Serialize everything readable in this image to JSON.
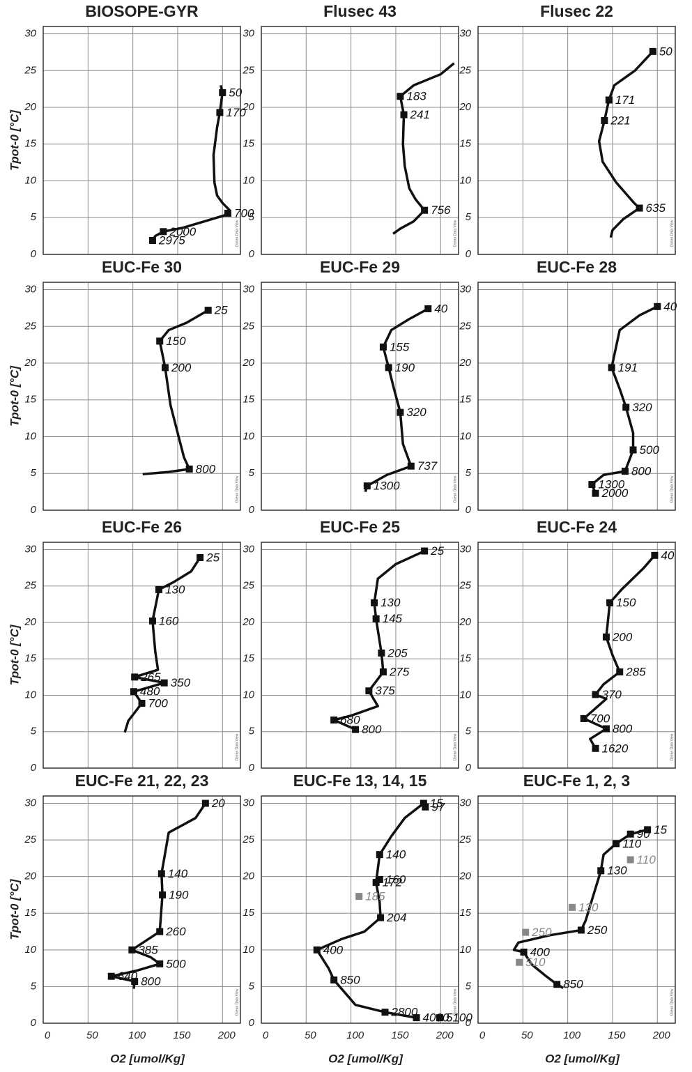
{
  "chart_data": [
    {
      "type": "line",
      "title": "BIOSOPE-GYR",
      "ylabel": "Tpot-0 [°C]",
      "watermark": "Ocean Data View",
      "color": "#111111",
      "x": [
        198,
        200,
        197,
        194,
        190,
        191,
        194,
        200,
        208,
        202,
        180,
        155,
        134,
        125,
        122
      ],
      "values": [
        23,
        22,
        19.3,
        17.3,
        13.5,
        9.8,
        8,
        7,
        6,
        5.3,
        4.5,
        3.6,
        3.1,
        2.5,
        1.9
      ],
      "markers": [
        {
          "x": 200,
          "y": 22,
          "label": 50
        },
        {
          "x": 197,
          "y": 19.3,
          "label": 170
        },
        {
          "x": 206,
          "y": 5.6,
          "label": 700
        },
        {
          "x": 134,
          "y": 3.1,
          "label": 2000
        },
        {
          "x": 122,
          "y": 1.9,
          "label": 2975
        }
      ],
      "xlim": [
        0,
        220
      ],
      "ylim": [
        0,
        31
      ],
      "xticks": [
        0,
        50,
        100,
        150,
        200
      ],
      "yticks": [
        0,
        5,
        10,
        15,
        20,
        25,
        30
      ],
      "grid": true,
      "show_xtick_labels": false
    },
    {
      "type": "line",
      "title": "Flusec 43",
      "watermark": "Ocean Data View",
      "color": "#111111",
      "x": [
        215,
        200,
        170,
        155,
        159,
        158,
        160,
        165,
        172,
        182,
        170,
        155,
        147
      ],
      "values": [
        26,
        24.5,
        23,
        21.5,
        19,
        15,
        12,
        9,
        7.5,
        6,
        4.5,
        3.5,
        2.8
      ],
      "markers": [
        {
          "x": 155,
          "y": 21.5,
          "label": 183
        },
        {
          "x": 159,
          "y": 19,
          "label": 241
        },
        {
          "x": 182,
          "y": 6,
          "label": 756
        }
      ],
      "xlim": [
        0,
        220
      ],
      "ylim": [
        0,
        31
      ],
      "xticks": [
        0,
        50,
        100,
        150,
        200
      ],
      "yticks": [
        0,
        5,
        10,
        15,
        20,
        25,
        30
      ],
      "grid": true,
      "show_xtick_labels": false
    },
    {
      "type": "line",
      "title": "Flusec 22",
      "watermark": "Ocean Data View",
      "color": "#111111",
      "x": [
        195,
        175,
        152,
        146,
        141,
        135,
        139,
        154,
        174,
        180,
        162,
        150,
        148
      ],
      "values": [
        27.6,
        25,
        23,
        21,
        18.2,
        15.4,
        12.6,
        9.8,
        7,
        6.3,
        4.8,
        3.3,
        2.3
      ],
      "markers": [
        {
          "x": 195,
          "y": 27.6,
          "label": 50
        },
        {
          "x": 146,
          "y": 21,
          "label": 171
        },
        {
          "x": 141,
          "y": 18.2,
          "label": 221
        },
        {
          "x": 180,
          "y": 6.3,
          "label": 635
        }
      ],
      "xlim": [
        0,
        220
      ],
      "ylim": [
        0,
        31
      ],
      "xticks": [
        0,
        50,
        100,
        150,
        200
      ],
      "yticks": [
        0,
        5,
        10,
        15,
        20,
        25,
        30
      ],
      "grid": true,
      "show_xtick_labels": false
    },
    {
      "type": "line",
      "title": "EUC-Fe 30",
      "ylabel": "Tpot-0 [°C]",
      "watermark": "Ocean Data View",
      "color": "#111111",
      "x": [
        184,
        160,
        140,
        130,
        136,
        142,
        150,
        157,
        163,
        140,
        111
      ],
      "values": [
        27.2,
        25.5,
        24.5,
        23,
        19.4,
        14.3,
        10.5,
        7.2,
        5.6,
        5.2,
        4.9
      ],
      "markers": [
        {
          "x": 184,
          "y": 27.2,
          "label": 25
        },
        {
          "x": 130,
          "y": 23,
          "label": 150
        },
        {
          "x": 136,
          "y": 19.4,
          "label": 200
        },
        {
          "x": 163,
          "y": 5.6,
          "label": 800
        }
      ],
      "xlim": [
        0,
        220
      ],
      "ylim": [
        0,
        31
      ],
      "xticks": [
        0,
        50,
        100,
        150,
        200
      ],
      "yticks": [
        0,
        5,
        10,
        15,
        20,
        25,
        30
      ],
      "grid": true,
      "show_xtick_labels": false
    },
    {
      "type": "line",
      "title": "EUC-Fe 29",
      "watermark": "Ocean Data View",
      "color": "#111111",
      "x": [
        186,
        165,
        145,
        136,
        142,
        148,
        155,
        158,
        167,
        140,
        118,
        116
      ],
      "values": [
        27.4,
        26,
        24.5,
        22.2,
        19.4,
        16.5,
        13.3,
        9,
        6,
        4.8,
        3.3,
        2.5
      ],
      "markers": [
        {
          "x": 186,
          "y": 27.4,
          "label": 40
        },
        {
          "x": 136,
          "y": 22.2,
          "label": 155
        },
        {
          "x": 142,
          "y": 19.4,
          "label": 190
        },
        {
          "x": 155,
          "y": 13.3,
          "label": 320
        },
        {
          "x": 167,
          "y": 6,
          "label": 737
        },
        {
          "x": 118,
          "y": 3.3,
          "label": 1300
        }
      ],
      "xlim": [
        0,
        220
      ],
      "ylim": [
        0,
        31
      ],
      "xticks": [
        0,
        50,
        100,
        150,
        200
      ],
      "yticks": [
        0,
        5,
        10,
        15,
        20,
        25,
        30
      ],
      "grid": true,
      "show_xtick_labels": false
    },
    {
      "type": "line",
      "title": "EUC-Fe 28",
      "watermark": "Ocean Data View",
      "color": "#111111",
      "x": [
        200,
        180,
        158,
        149,
        158,
        165,
        173,
        173,
        164,
        140,
        127,
        131
      ],
      "values": [
        27.7,
        26.5,
        24.5,
        19.4,
        16.5,
        14,
        10.5,
        8.2,
        5.3,
        4.8,
        3.5,
        2.3
      ],
      "markers": [
        {
          "x": 200,
          "y": 27.7,
          "label": 40
        },
        {
          "x": 149,
          "y": 19.4,
          "label": 191
        },
        {
          "x": 165,
          "y": 14,
          "label": 320
        },
        {
          "x": 173,
          "y": 8.2,
          "label": 500
        },
        {
          "x": 164,
          "y": 5.3,
          "label": 800
        },
        {
          "x": 127,
          "y": 3.5,
          "label": 1300
        },
        {
          "x": 131,
          "y": 2.3,
          "label": 2000
        }
      ],
      "xlim": [
        0,
        220
      ],
      "ylim": [
        0,
        31
      ],
      "xticks": [
        0,
        50,
        100,
        150,
        200
      ],
      "yticks": [
        0,
        5,
        10,
        15,
        20,
        25,
        30
      ],
      "grid": true,
      "show_xtick_labels": false
    },
    {
      "type": "line",
      "title": "EUC-Fe 26",
      "ylabel": "Tpot-0 [°C]",
      "watermark": "Ocean Data View",
      "color": "#111111",
      "x": [
        175,
        165,
        145,
        129,
        122,
        125,
        128,
        102,
        135,
        101,
        110,
        95,
        91
      ],
      "values": [
        28.9,
        27,
        25.5,
        24.5,
        20.2,
        16,
        13.5,
        12.5,
        11.7,
        10.5,
        8.9,
        6.5,
        4.9
      ],
      "markers": [
        {
          "x": 175,
          "y": 28.9,
          "label": 25
        },
        {
          "x": 129,
          "y": 24.5,
          "label": 130
        },
        {
          "x": 122,
          "y": 20.2,
          "label": 160
        },
        {
          "x": 102,
          "y": 12.5,
          "label": 265
        },
        {
          "x": 135,
          "y": 11.7,
          "label": 350
        },
        {
          "x": 101,
          "y": 10.5,
          "label": 480
        },
        {
          "x": 110,
          "y": 8.9,
          "label": 700
        }
      ],
      "xlim": [
        0,
        220
      ],
      "ylim": [
        0,
        31
      ],
      "xticks": [
        0,
        50,
        100,
        150,
        200
      ],
      "yticks": [
        0,
        5,
        10,
        15,
        20,
        25,
        30
      ],
      "grid": true,
      "show_xtick_labels": false
    },
    {
      "type": "line",
      "title": "EUC-Fe 25",
      "watermark": "Ocean Data View",
      "color": "#111111",
      "x": [
        182,
        150,
        130,
        126,
        128,
        134,
        136,
        120,
        130,
        100,
        81,
        105,
        107
      ],
      "values": [
        29.8,
        28,
        26,
        22.7,
        20.5,
        15.8,
        13.2,
        10.6,
        8.5,
        7.2,
        6.6,
        5.3,
        4.9
      ],
      "markers": [
        {
          "x": 182,
          "y": 29.8,
          "label": 25
        },
        {
          "x": 126,
          "y": 22.7,
          "label": 130
        },
        {
          "x": 128,
          "y": 20.5,
          "label": 145
        },
        {
          "x": 134,
          "y": 15.8,
          "label": 205
        },
        {
          "x": 136,
          "y": 13.2,
          "label": 275
        },
        {
          "x": 120,
          "y": 10.6,
          "label": 375
        },
        {
          "x": 81,
          "y": 6.6,
          "label": 680
        },
        {
          "x": 105,
          "y": 5.3,
          "label": 800
        }
      ],
      "xlim": [
        0,
        220
      ],
      "ylim": [
        0,
        31
      ],
      "xticks": [
        0,
        50,
        100,
        150,
        200
      ],
      "yticks": [
        0,
        5,
        10,
        15,
        20,
        25,
        30
      ],
      "grid": true,
      "show_xtick_labels": false
    },
    {
      "type": "line",
      "title": "EUC-Fe 24",
      "watermark": "Ocean Data View",
      "color": "#111111",
      "x": [
        197,
        185,
        160,
        147,
        143,
        150,
        158,
        140,
        131,
        143,
        118,
        143,
        125,
        131
      ],
      "values": [
        29.2,
        27.5,
        24.5,
        22.7,
        18,
        15.5,
        13.2,
        11.5,
        10.1,
        9.5,
        6.8,
        5.4,
        4,
        2.7
      ],
      "markers": [
        {
          "x": 197,
          "y": 29.2,
          "label": 40
        },
        {
          "x": 147,
          "y": 22.7,
          "label": 150
        },
        {
          "x": 143,
          "y": 18,
          "label": 200
        },
        {
          "x": 158,
          "y": 13.2,
          "label": 285
        },
        {
          "x": 131,
          "y": 10.1,
          "label": 370
        },
        {
          "x": 118,
          "y": 6.8,
          "label": 700
        },
        {
          "x": 143,
          "y": 5.4,
          "label": 800
        },
        {
          "x": 131,
          "y": 2.7,
          "label": 1620
        }
      ],
      "xlim": [
        0,
        220
      ],
      "ylim": [
        0,
        31
      ],
      "xticks": [
        0,
        50,
        100,
        150,
        200
      ],
      "yticks": [
        0,
        5,
        10,
        15,
        20,
        25,
        30
      ],
      "grid": true,
      "show_xtick_labels": false
    },
    {
      "type": "line",
      "title": "EUC-Fe 21, 22, 23",
      "ylabel": "Tpot-0 [°C]",
      "xlabel": "O2 [umol/Kg]",
      "watermark": "Ocean Data View",
      "color": "#111111",
      "x": [
        181,
        170,
        140,
        132,
        133,
        130,
        99,
        120,
        130,
        105,
        76,
        102,
        101
      ],
      "values": [
        30,
        28,
        26,
        20.4,
        17.5,
        12.5,
        10,
        9,
        8.1,
        7.2,
        6.4,
        5.7,
        4.7
      ],
      "markers": [
        {
          "x": 181,
          "y": 30,
          "label": 20
        },
        {
          "x": 132,
          "y": 20.4,
          "label": 140
        },
        {
          "x": 133,
          "y": 17.5,
          "label": 190
        },
        {
          "x": 130,
          "y": 12.5,
          "label": 260
        },
        {
          "x": 99,
          "y": 10,
          "label": 385
        },
        {
          "x": 130,
          "y": 8.1,
          "label": 500
        },
        {
          "x": 76,
          "y": 6.4,
          "label": 640
        },
        {
          "x": 102,
          "y": 5.7,
          "label": 800
        }
      ],
      "xlim": [
        0,
        220
      ],
      "ylim": [
        0,
        31
      ],
      "xticks": [
        0,
        50,
        100,
        150,
        200
      ],
      "yticks": [
        0,
        5,
        10,
        15,
        20,
        25,
        30
      ],
      "grid": true,
      "show_xtick_labels": true
    },
    {
      "type": "line",
      "title": "EUC-Fe 13, 14, 15",
      "xlabel": "O2 [umol/Kg]",
      "watermark": "Ocean Data View",
      "color": "#111111",
      "x": [
        181,
        160,
        145,
        132,
        128,
        132,
        133,
        115,
        90,
        62,
        75,
        81,
        105,
        138,
        173
      ],
      "values": [
        30,
        28,
        25.5,
        23,
        19.2,
        16.5,
        14.4,
        12.5,
        11.5,
        10,
        7.5,
        5.9,
        2.5,
        1.5,
        0.75
      ],
      "markers": [
        {
          "x": 181,
          "y": 30,
          "label": 15
        },
        {
          "x": 183,
          "y": 29.5,
          "label": 97
        },
        {
          "x": 132,
          "y": 23,
          "label": 140
        },
        {
          "x": 128,
          "y": 19.2,
          "label": 172
        },
        {
          "x": 132,
          "y": 19.6,
          "label": 160
        },
        {
          "x": 109,
          "y": 17.3,
          "label": 185,
          "color": "#888888"
        },
        {
          "x": 133,
          "y": 14.4,
          "label": 204
        },
        {
          "x": 62,
          "y": 10,
          "label": 400
        },
        {
          "x": 81,
          "y": 5.9,
          "label": 850
        },
        {
          "x": 138,
          "y": 1.5,
          "label": 2800
        },
        {
          "x": 173,
          "y": 0.75,
          "label": 4000
        },
        {
          "x": 199,
          "y": 0.75,
          "label": 5100
        }
      ],
      "xlim": [
        0,
        220
      ],
      "ylim": [
        0,
        31
      ],
      "xticks": [
        0,
        50,
        100,
        150,
        200
      ],
      "yticks": [
        0,
        5,
        10,
        15,
        20,
        25,
        30
      ],
      "grid": true,
      "show_xtick_labels": true
    },
    {
      "type": "line",
      "title": "EUC-Fe 1, 2, 3",
      "xlabel": "O2 [umol/Kg]",
      "watermark": "Ocean Data View",
      "color": "#111111",
      "x": [
        189,
        170,
        154,
        140,
        137,
        130,
        120,
        115,
        80,
        45,
        40,
        51,
        60,
        75,
        88,
        95
      ],
      "values": [
        26.4,
        25.8,
        24.5,
        23,
        20.8,
        18,
        14,
        12.7,
        12,
        11,
        10,
        9.7,
        8,
        6.5,
        5.3,
        4.8
      ],
      "markers": [
        {
          "x": 189,
          "y": 26.4,
          "label": 15
        },
        {
          "x": 170,
          "y": 25.8,
          "label": 90
        },
        {
          "x": 154,
          "y": 24.5,
          "label": 110
        },
        {
          "x": 170,
          "y": 22.3,
          "label": 110,
          "color": "#888888"
        },
        {
          "x": 137,
          "y": 20.8,
          "label": 130
        },
        {
          "x": 105,
          "y": 15.8,
          "label": 130,
          "color": "#888888"
        },
        {
          "x": 115,
          "y": 12.7,
          "label": 250
        },
        {
          "x": 53,
          "y": 12.4,
          "label": 250,
          "color": "#888888"
        },
        {
          "x": 51,
          "y": 9.7,
          "label": 400
        },
        {
          "x": 46,
          "y": 8.3,
          "label": 510,
          "color": "#888888"
        },
        {
          "x": 88,
          "y": 5.3,
          "label": 850
        }
      ],
      "xlim": [
        0,
        220
      ],
      "ylim": [
        0,
        31
      ],
      "xticks": [
        0,
        50,
        100,
        150,
        200
      ],
      "yticks": [
        0,
        5,
        10,
        15,
        20,
        25,
        30
      ],
      "grid": true,
      "show_xtick_labels": true
    }
  ]
}
